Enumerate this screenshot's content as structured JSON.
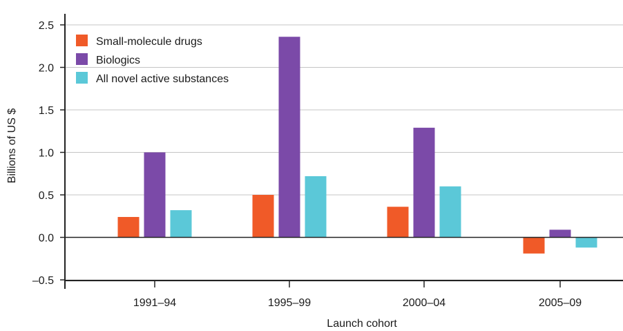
{
  "chart_data": {
    "type": "bar",
    "categories": [
      "1991–94",
      "1995–99",
      "2000–04",
      "2005–09"
    ],
    "series": [
      {
        "name": "Small-molecule drugs",
        "color": "#f05a28",
        "values": [
          0.24,
          0.5,
          0.36,
          -0.19
        ]
      },
      {
        "name": "Biologics",
        "color": "#7b4aa8",
        "values": [
          1.0,
          2.36,
          1.29,
          0.09
        ]
      },
      {
        "name": "All novel active substances",
        "color": "#5bc8d8",
        "values": [
          0.32,
          0.72,
          0.6,
          -0.12
        ]
      }
    ],
    "xlabel": "Launch cohort",
    "ylabel": "Billions of US $",
    "ylim": [
      -0.5,
      2.5
    ],
    "yticks": [
      2.5,
      2.0,
      1.5,
      1.0,
      0.5,
      0.0,
      -0.5
    ],
    "ytick_labels": [
      "2.5",
      "2.0",
      "1.5",
      "1.0",
      "0.5",
      "0.0",
      "–0.5"
    ],
    "grid": true,
    "legend_position": "top-left"
  }
}
